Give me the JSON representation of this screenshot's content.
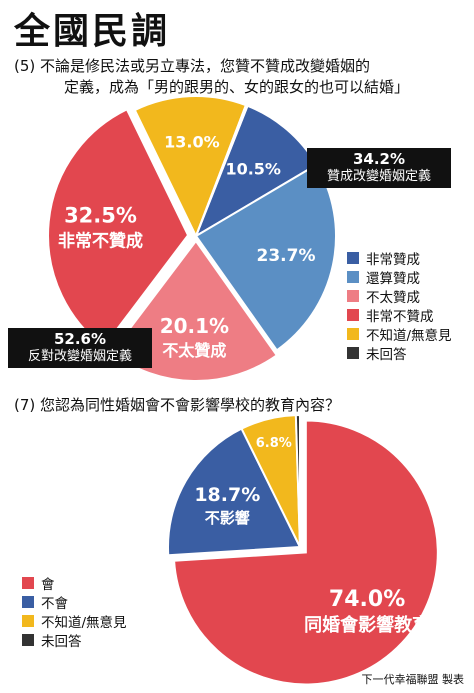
{
  "title": "全國民調",
  "question5": {
    "line1": "(5) 不論是修民法或另立專法，您贊不贊成改變婚姻的",
    "line2": "定義，成為「男的跟男的、女的跟女的也可以結婚」"
  },
  "question7": {
    "text": "(7) 您認為同性婚姻會不會影響學校的教育內容？"
  },
  "callouts": {
    "support": {
      "pct": "34.2%",
      "label": "贊成改變婚姻定義"
    },
    "oppose": {
      "pct": "52.6%",
      "label": "反對改變婚姻定義"
    }
  },
  "credit": "下一代幸福聯盟 製表",
  "chart_data": [
    {
      "type": "pie",
      "title": "",
      "categories": [
        "非常贊成",
        "還算贊成",
        "不太贊成",
        "非常不贊成",
        "不知道/無意見",
        "未回答"
      ],
      "values": [
        10.5,
        23.7,
        20.1,
        32.5,
        13.0,
        0.2
      ],
      "labels": [
        "10.5%",
        "23.7%",
        "20.1%",
        "32.5%",
        "13.0%",
        ""
      ],
      "sublabels": [
        "",
        "",
        "不太贊成",
        "非常不贊成",
        "",
        ""
      ],
      "colors": [
        "#3a5ea3",
        "#5b8fc4",
        "#ee7d84",
        "#e2474f",
        "#f2b81d",
        "#333333"
      ],
      "legend": "right",
      "grid": false
    },
    {
      "type": "pie",
      "title": "",
      "categories": [
        "會",
        "不會",
        "不知道/無意見",
        "未回答"
      ],
      "values": [
        74.0,
        18.7,
        6.8,
        0.5
      ],
      "labels": [
        "74.0%",
        "18.7%",
        "6.8%",
        ""
      ],
      "sublabels": [
        "同婚會影響教育",
        "不影響",
        "",
        ""
      ],
      "colors": [
        "#e2474f",
        "#3a5ea3",
        "#f2b81d",
        "#333333"
      ],
      "legend": "bottom-left",
      "grid": false
    }
  ]
}
